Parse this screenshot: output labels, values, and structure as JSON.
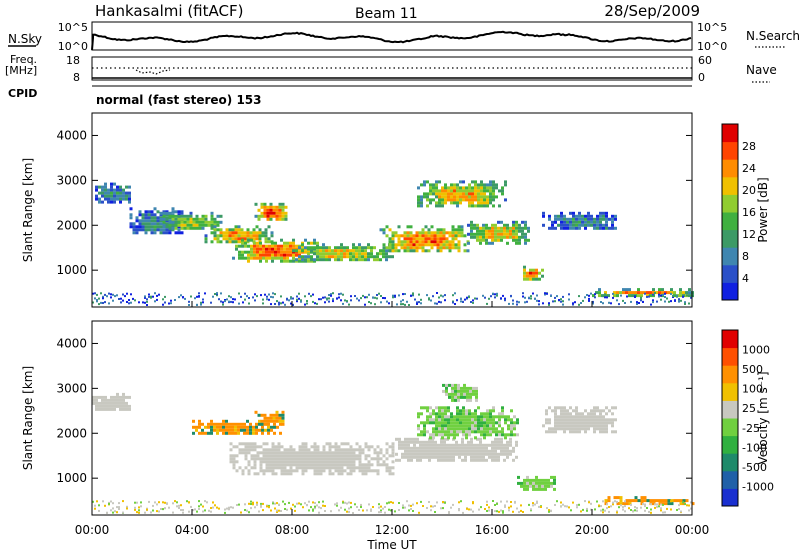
{
  "header": {
    "station": "Hankasalmi (fitACF)",
    "beam": "Beam 11",
    "date": "28/Sep/2009"
  },
  "summary_panels": {
    "nsky_label": "N.Sky",
    "nsearch_label": "N.Search",
    "nsky_left_ticks": [
      "10^5",
      "10^0"
    ],
    "nsky_right_ticks": [
      "10^5",
      "10^0"
    ],
    "freq_label": "Freq.",
    "freq_unit": "[MHz]",
    "freq_left_ticks": [
      "18",
      "8"
    ],
    "nave_label": "Nave",
    "nave_right_ticks": [
      "60",
      "0"
    ],
    "cpid_label": "CPID",
    "cpid_value": "normal (fast stereo) 153"
  },
  "chart_data": [
    {
      "type": "heatmap",
      "name": "power",
      "xlabel": "",
      "ylabel": "Slant Range [km]",
      "xlim": [
        0,
        24
      ],
      "ylim": [
        180,
        4500
      ],
      "y_ticks": [
        "4000",
        "3000",
        "2000",
        "1000"
      ],
      "colorbar": {
        "label": "Power [dB]",
        "ticks": [
          "28",
          "24",
          "20",
          "16",
          "12",
          "8",
          "4"
        ],
        "colors": [
          "#1020e0",
          "#2a50c8",
          "#3f86b0",
          "#3c9a66",
          "#40b040",
          "#90cc30",
          "#f0c000",
          "#ff8c00",
          "#ff4400",
          "#e00000"
        ]
      },
      "regions": [
        {
          "t0": 0.0,
          "t1": 1.5,
          "r0": 2500,
          "r1": 2950,
          "level": 0.3
        },
        {
          "t0": 1.5,
          "t1": 3.6,
          "r0": 1800,
          "r1": 2400,
          "level": 0.25
        },
        {
          "t0": 2.7,
          "t1": 5.2,
          "r0": 1900,
          "r1": 2300,
          "level": 0.5
        },
        {
          "t0": 4.5,
          "t1": 7.2,
          "r0": 1600,
          "r1": 2000,
          "level": 0.65
        },
        {
          "t0": 6.5,
          "t1": 7.8,
          "r0": 2100,
          "r1": 2500,
          "level": 0.8
        },
        {
          "t0": 5.6,
          "t1": 9.0,
          "r0": 1200,
          "r1": 1700,
          "level": 0.75
        },
        {
          "t0": 8.0,
          "t1": 12.0,
          "r0": 1200,
          "r1": 1600,
          "level": 0.55
        },
        {
          "t0": 11.5,
          "t1": 15.0,
          "r0": 1400,
          "r1": 2000,
          "level": 0.7
        },
        {
          "t0": 13.0,
          "t1": 16.5,
          "r0": 2400,
          "r1": 3000,
          "level": 0.6
        },
        {
          "t0": 15.0,
          "t1": 17.5,
          "r0": 1600,
          "r1": 2100,
          "level": 0.6
        },
        {
          "t0": 17.0,
          "t1": 18.0,
          "r0": 800,
          "r1": 1100,
          "level": 0.75
        },
        {
          "t0": 18.0,
          "t1": 21.0,
          "r0": 1900,
          "r1": 2300,
          "level": 0.25
        },
        {
          "t0": 20.0,
          "t1": 24.0,
          "r0": 450,
          "r1": 600,
          "level": 0.7
        }
      ]
    },
    {
      "type": "heatmap",
      "name": "velocity",
      "xlabel": "Time UT",
      "ylabel": "Slant Range [km]",
      "xlim": [
        0,
        24
      ],
      "ylim": [
        180,
        4500
      ],
      "x_ticks": [
        "00:00",
        "04:00",
        "08:00",
        "12:00",
        "16:00",
        "20:00",
        "00:00"
      ],
      "y_ticks": [
        "4000",
        "3000",
        "2000",
        "1000"
      ],
      "colorbar": {
        "label": "Velocity [m s⁻¹]",
        "ticks": [
          "1000",
          "500",
          "100",
          "25",
          "-25",
          "-100",
          "-500",
          "-1000"
        ],
        "colors": [
          "#1a30d0",
          "#2060a8",
          "#1e8a6a",
          "#30b040",
          "#70d040",
          "#c8c8c0",
          "#f0c000",
          "#ff9000",
          "#ff5000",
          "#e00000"
        ]
      },
      "regions": [
        {
          "t0": 0.0,
          "t1": 1.5,
          "r0": 2500,
          "r1": 2900,
          "level": 0.5
        },
        {
          "t0": 4.0,
          "t1": 7.5,
          "r0": 2000,
          "r1": 2300,
          "level": 0.8
        },
        {
          "t0": 6.5,
          "t1": 7.7,
          "r0": 2200,
          "r1": 2500,
          "level": 0.9
        },
        {
          "t0": 5.5,
          "t1": 12.0,
          "r0": 1100,
          "r1": 1800,
          "level": 0.5
        },
        {
          "t0": 12.0,
          "t1": 17.0,
          "r0": 1400,
          "r1": 1900,
          "level": 0.5
        },
        {
          "t0": 13.0,
          "t1": 17.0,
          "r0": 1900,
          "r1": 2600,
          "level": 0.3
        },
        {
          "t0": 14.0,
          "t1": 15.5,
          "r0": 2700,
          "r1": 3100,
          "level": 0.3
        },
        {
          "t0": 17.0,
          "t1": 18.5,
          "r0": 750,
          "r1": 1050,
          "level": 0.3
        },
        {
          "t0": 18.0,
          "t1": 21.0,
          "r0": 2000,
          "r1": 2600,
          "level": 0.5
        },
        {
          "t0": 20.5,
          "t1": 24.0,
          "r0": 450,
          "r1": 600,
          "level": 0.8
        }
      ]
    }
  ]
}
